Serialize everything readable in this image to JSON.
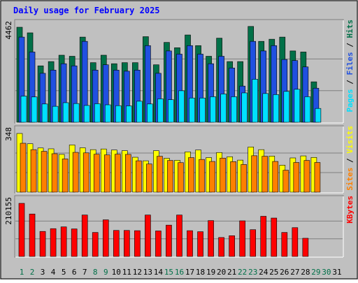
{
  "chart_data": {
    "type": "bar",
    "title": "Daily usage for February 2025",
    "x": [
      "1",
      "2",
      "3",
      "4",
      "5",
      "6",
      "7",
      "8",
      "9",
      "10",
      "11",
      "12",
      "13",
      "14",
      "15",
      "16",
      "17",
      "18",
      "19",
      "20",
      "21",
      "22",
      "23",
      "24",
      "25",
      "26",
      "27",
      "28",
      "29",
      "30",
      "31"
    ],
    "weekend_days": [
      "1",
      "2",
      "8",
      "9",
      "15",
      "16",
      "22",
      "23",
      "29",
      "30"
    ],
    "colors": {
      "hits": "#007048",
      "files": "#2050e0",
      "pages": "#00e0ff",
      "visits": "#ffff00",
      "sites": "#ff8000",
      "kbytes": "#ff0000",
      "title": "#0000ff",
      "weekend_label": "#007048",
      "weekday_label": "#000000",
      "plot_bg": "#c0c0c0",
      "grid": "#808080"
    },
    "panels": [
      {
        "ymax_label": "4462",
        "ymax": 4462,
        "legend": [
          {
            "name": "Pages",
            "color": "#00e0ff"
          },
          {
            "name": "Files",
            "color": "#2050e0"
          },
          {
            "name": "Hits",
            "color": "#007048"
          }
        ],
        "series": [
          {
            "name": "Hits",
            "values": [
              4462,
              4200,
              2650,
              2850,
              3150,
              3100,
              4000,
              2800,
              3150,
              2750,
              2800,
              2800,
              4020,
              2700,
              3750,
              3500,
              4100,
              3600,
              3100,
              3950,
              2850,
              2850,
              4500,
              3800,
              3900,
              4000,
              3350,
              3300,
              1900
            ]
          },
          {
            "name": "Files",
            "values": [
              4000,
              3300,
              2300,
              2450,
              2750,
              2650,
              3800,
              2450,
              2700,
              2450,
              2400,
              2450,
              3600,
              2300,
              3350,
              3200,
              3600,
              3200,
              2750,
              3100,
              2550,
              1700,
              3800,
              3350,
              3600,
              2950,
              2900,
              2600,
              1600
            ]
          },
          {
            "name": "Pages",
            "values": [
              1230,
              1190,
              860,
              750,
              920,
              880,
              790,
              870,
              820,
              780,
              770,
              990,
              860,
              1100,
              1060,
              1480,
              1140,
              1140,
              1200,
              1330,
              1200,
              1380,
              2020,
              1350,
              1300,
              1450,
              1550,
              1200,
              650
            ]
          }
        ]
      },
      {
        "ymax_label": "348",
        "ymax": 348,
        "legend": [
          {
            "name": "Sites",
            "color": "#ff8000"
          },
          {
            "name": "Visits",
            "color": "#ffff00"
          }
        ],
        "series": [
          {
            "name": "Visits",
            "values": [
              348,
              287,
              262,
              257,
              224,
              280,
              263,
              252,
              256,
              250,
              246,
              207,
              186,
              246,
              201,
              189,
              239,
              250,
              205,
              235,
              210,
              190,
              268,
              252,
              214,
              160,
              203,
              215,
              206
            ]
          },
          {
            "name": "Sites",
            "values": [
              290,
              252,
              242,
              228,
              197,
              236,
              233,
              225,
              221,
              225,
              224,
              186,
              167,
              213,
              188,
              175,
              205,
              194,
              182,
              202,
              181,
              164,
              216,
              213,
              182,
              130,
              176,
              188,
              176
            ]
          }
        ]
      },
      {
        "ymax_label": "210155",
        "ymax": 210155,
        "legend": [
          {
            "name": "KBytes",
            "color": "#ff0000"
          }
        ],
        "series": [
          {
            "name": "KBytes",
            "values": [
              210155,
              168000,
              99000,
              110000,
              117000,
              109000,
              164000,
              95000,
              145000,
              103000,
              103000,
              102000,
              164000,
              101000,
              124000,
              164000,
              102000,
              98000,
              142000,
              75000,
              82000,
              141000,
              106000,
              159000,
              152000,
              95000,
              114000,
              72000
            ]
          }
        ]
      }
    ]
  }
}
